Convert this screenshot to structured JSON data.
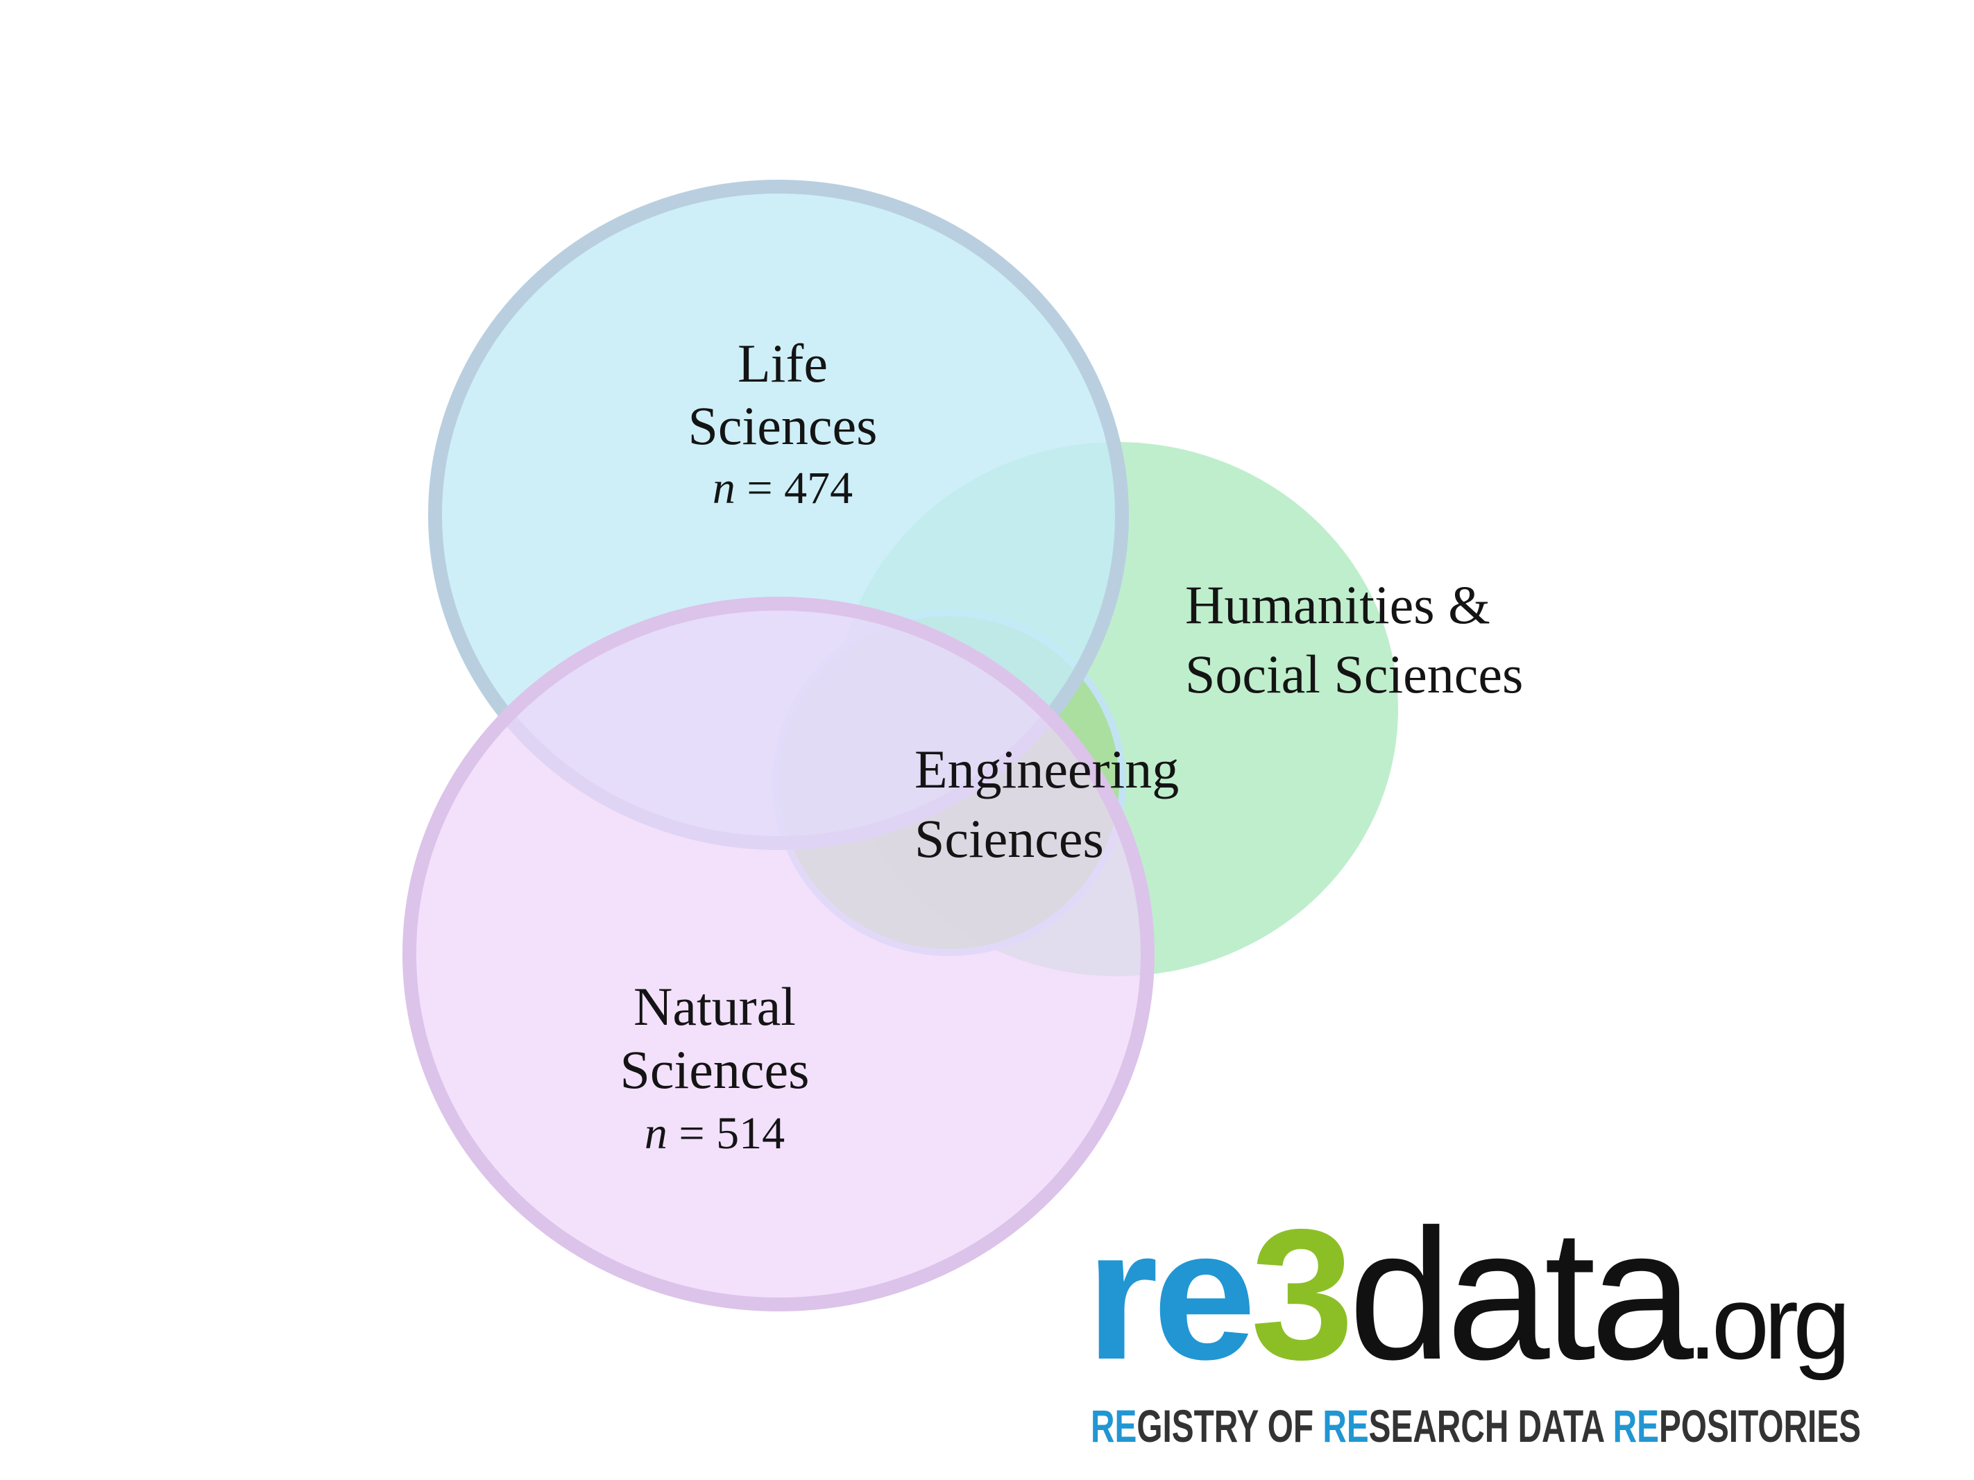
{
  "sets": {
    "life": {
      "name_line1": "Life",
      "name_line2": "Sciences",
      "n_symbol": "n",
      "n_text": " = 474",
      "fill": "#c3ebf7",
      "stroke": "#b9cfe0"
    },
    "natural": {
      "name_line1": "Natural",
      "name_line2": "Sciences",
      "n_symbol": "n",
      "n_text": " = 514",
      "fill": "#efd5fb",
      "stroke": "#dcc3ea"
    },
    "humanities": {
      "name_line1": "Humanities &",
      "name_line2": "Social Sciences",
      "fill": "#bfeecc"
    },
    "engineering": {
      "name_line1": "Engineering",
      "name_line2": "Sciences",
      "fill": "#a8dd9b",
      "stroke": "#c2e3f3"
    }
  },
  "logo": {
    "re": "re",
    "three": "3",
    "data": "data",
    "org": ".org",
    "tag_re1": "RE",
    "tag_rest1": "GISTRY OF ",
    "tag_re2": "RE",
    "tag_rest2": "SEARCH DATA ",
    "tag_re3": "RE",
    "tag_rest3": "POSITORIES",
    "blue": "#2196d3",
    "green": "#8cbf26",
    "dark": "#111111",
    "tag_dark": "#333333"
  }
}
